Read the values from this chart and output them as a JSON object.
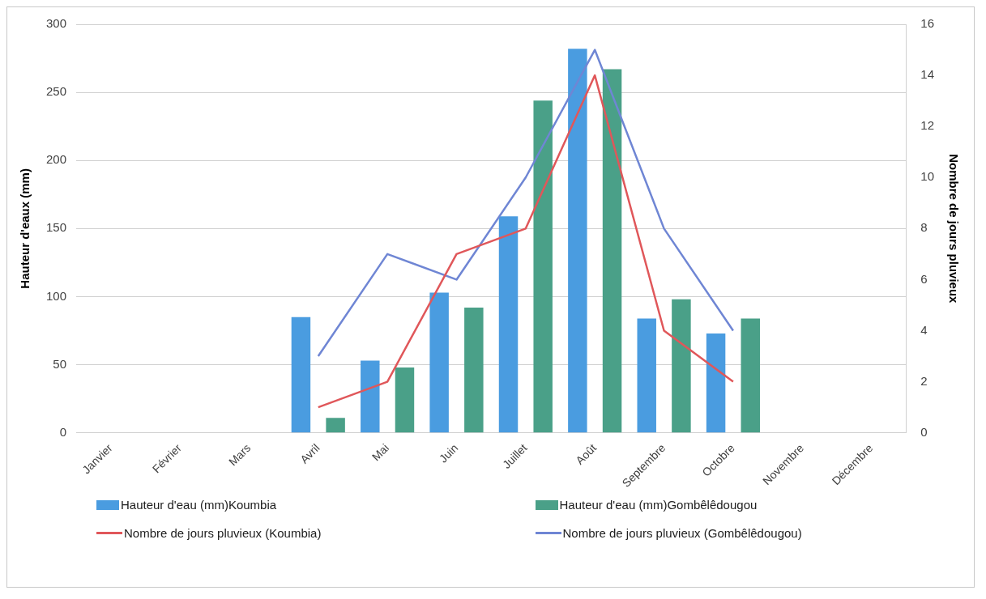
{
  "chart_data": {
    "type": "bar",
    "ylabel": "Hauteur d'eaux (mm)",
    "y2label": "Nombre de jours pluvieux",
    "categories": [
      "Janvier",
      "Février",
      "Mars",
      "Avril",
      "Mai",
      "Juin",
      "Juillet",
      "Août",
      "Septembre",
      "Octobre",
      "Novembre",
      "Décembre"
    ],
    "series": [
      {
        "name": "Hauteur d'eau (mm)Koumbia",
        "color": "#4a9ce0",
        "values": [
          null,
          null,
          null,
          85,
          53,
          103,
          159,
          282,
          84,
          73,
          null,
          null
        ]
      },
      {
        "name": "Hauteur d'eau (mm)Gombêlêdougou",
        "color": "#4aa088",
        "values": [
          null,
          null,
          null,
          11,
          48,
          92,
          244,
          267,
          98,
          84,
          null,
          null
        ]
      },
      {
        "name": "Nombre de jours pluvieux (Koumbia)",
        "type": "line",
        "axis": "y2",
        "color": "#e0575a",
        "values": [
          null,
          null,
          null,
          1,
          2,
          7,
          8,
          14,
          4,
          2,
          null,
          null
        ]
      },
      {
        "name": "Nombre de jours pluvieux (Gombêlêdougou)",
        "type": "line",
        "axis": "y2",
        "color": "#6f86d4",
        "values": [
          null,
          null,
          null,
          3,
          7,
          6,
          10,
          15,
          8,
          4,
          null,
          null
        ]
      }
    ],
    "ylim": [
      0,
      300
    ],
    "yticks": [
      0,
      50,
      100,
      150,
      200,
      250,
      300
    ],
    "y2lim": [
      0,
      16
    ],
    "y2ticks": [
      0,
      2,
      4,
      6,
      8,
      10,
      12,
      14,
      16
    ],
    "grid": "y",
    "legend": "bottom",
    "marker": "none"
  }
}
